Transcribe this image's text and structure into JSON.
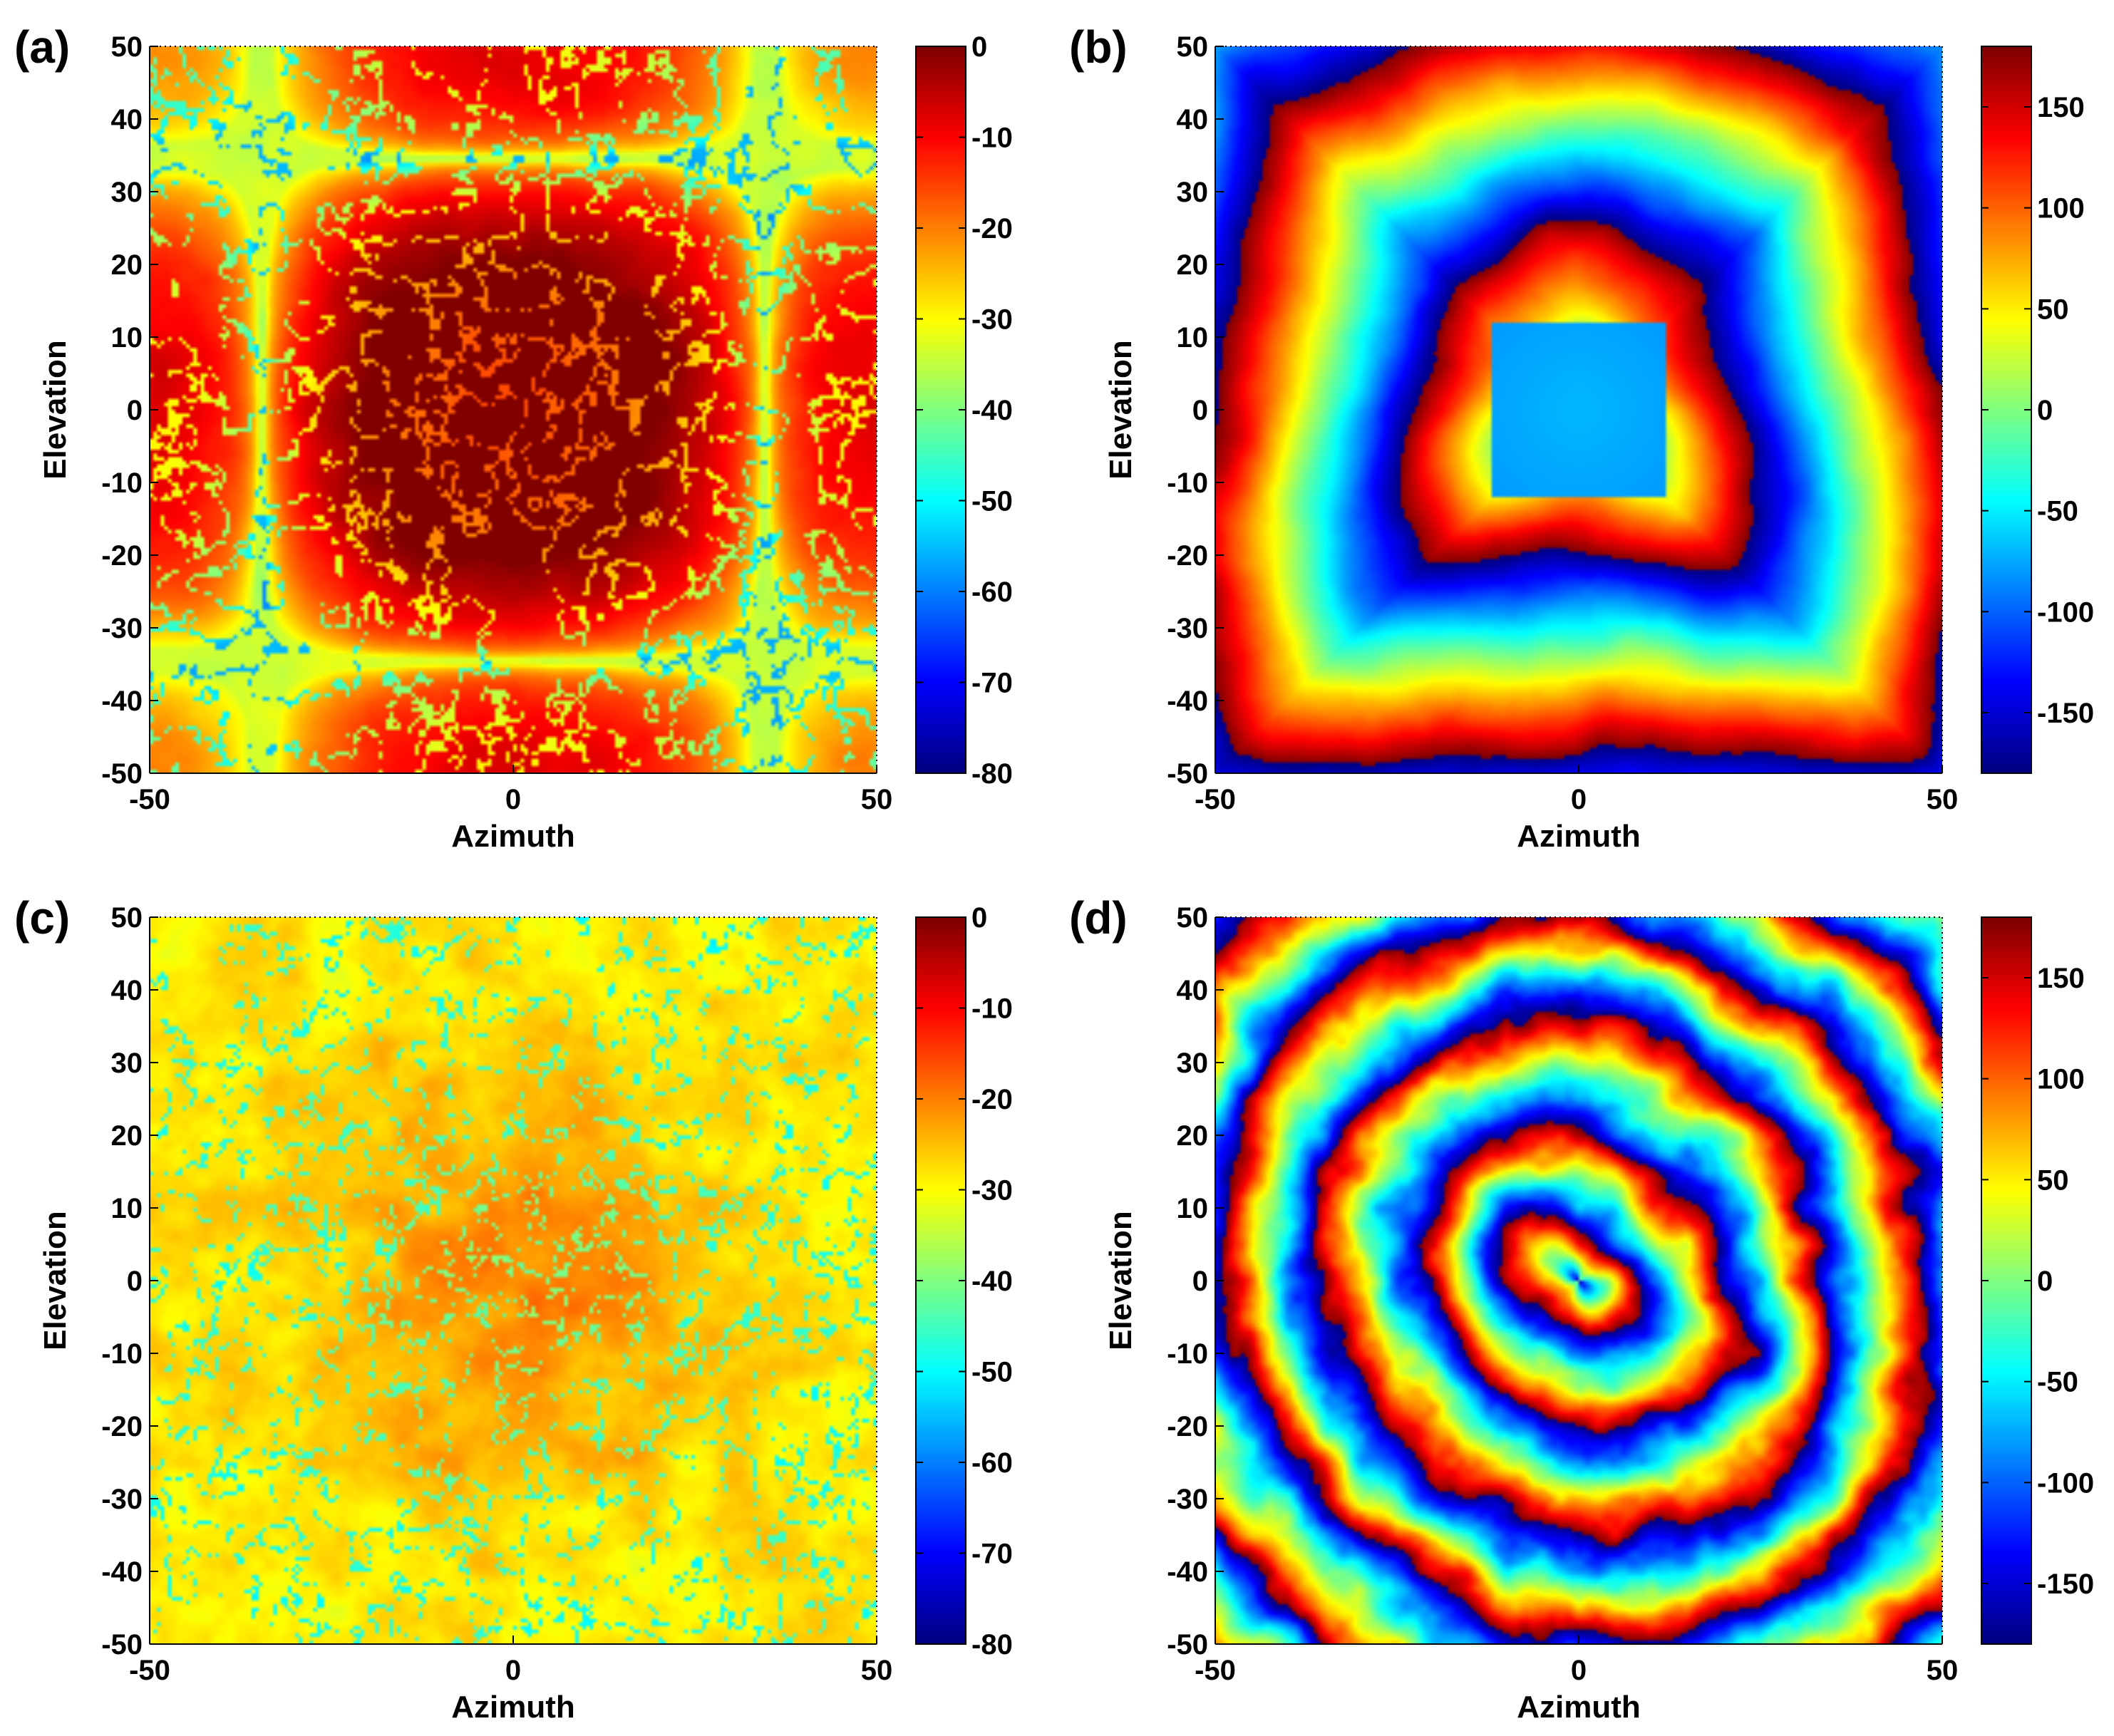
{
  "chart_data": [
    {
      "type": "heatmap",
      "panel_label": "(a)",
      "xlabel": "Azimuth",
      "ylabel": "Elevation",
      "xlim": [
        -50,
        50
      ],
      "ylim": [
        -50,
        50
      ],
      "x_ticks": [
        "-50",
        "0",
        "50"
      ],
      "y_ticks": [
        "50",
        "40",
        "30",
        "20",
        "10",
        "0",
        "-10",
        "-20",
        "-30",
        "-40",
        "-50"
      ],
      "colorbar": {
        "range": [
          -80,
          0
        ],
        "colormap": "jet",
        "ticks": [
          "0",
          "-10",
          "-20",
          "-30",
          "-40",
          "-50",
          "-60",
          "-70",
          "-80"
        ]
      },
      "pattern": "magnitude_ideal"
    },
    {
      "type": "heatmap",
      "panel_label": "(b)",
      "xlabel": "Azimuth",
      "ylabel": "Elevation",
      "xlim": [
        -50,
        50
      ],
      "ylim": [
        -50,
        50
      ],
      "x_ticks": [
        "-50",
        "0",
        "50"
      ],
      "y_ticks": [
        "50",
        "40",
        "30",
        "20",
        "10",
        "0",
        "-10",
        "-20",
        "-30",
        "-40",
        "-50"
      ],
      "colorbar": {
        "range": [
          -180,
          180
        ],
        "colormap": "jet",
        "ticks": [
          "150",
          "100",
          "50",
          "0",
          "-50",
          "-100",
          "-150"
        ]
      },
      "pattern": "phase_ideal"
    },
    {
      "type": "heatmap",
      "panel_label": "(c)",
      "xlabel": "Azimuth",
      "ylabel": "Elevation",
      "xlim": [
        -50,
        50
      ],
      "ylim": [
        -50,
        50
      ],
      "x_ticks": [
        "-50",
        "0",
        "50"
      ],
      "y_ticks": [
        "50",
        "40",
        "30",
        "20",
        "10",
        "0",
        "-10",
        "-20",
        "-30",
        "-40",
        "-50"
      ],
      "colorbar": {
        "range": [
          -80,
          0
        ],
        "colormap": "jet",
        "ticks": [
          "0",
          "-10",
          "-20",
          "-30",
          "-40",
          "-50",
          "-60",
          "-70",
          "-80"
        ]
      },
      "pattern": "magnitude_random"
    },
    {
      "type": "heatmap",
      "panel_label": "(d)",
      "xlabel": "Azimuth",
      "ylabel": "Elevation",
      "xlim": [
        -50,
        50
      ],
      "ylim": [
        -50,
        50
      ],
      "x_ticks": [
        "-50",
        "0",
        "50"
      ],
      "y_ticks": [
        "50",
        "40",
        "30",
        "20",
        "10",
        "0",
        "-10",
        "-20",
        "-30",
        "-40",
        "-50"
      ],
      "colorbar": {
        "range": [
          -180,
          180
        ],
        "colormap": "jet",
        "ticks": [
          "150",
          "100",
          "50",
          "0",
          "-50",
          "-100",
          "-150"
        ]
      },
      "pattern": "phase_random"
    }
  ]
}
